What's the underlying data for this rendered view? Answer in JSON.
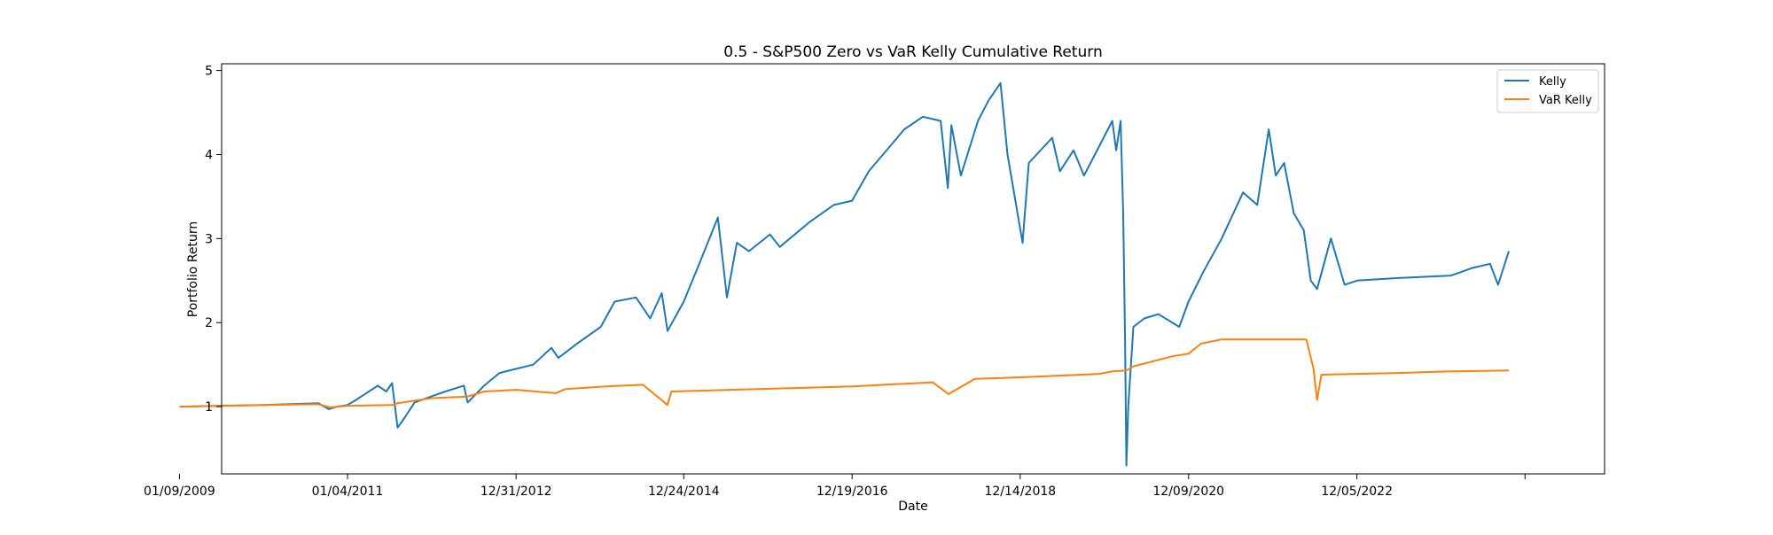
{
  "chart_data": {
    "type": "line",
    "title": "0.5 - S&P500 Zero vs VaR Kelly Cumulative Return",
    "xlabel": "Date",
    "ylabel": "Portfolio Return",
    "xlim": [
      "2009-07-10",
      "2025-11-07"
    ],
    "ylim": [
      0.2,
      5.08
    ],
    "x_ticks": [
      {
        "date": "2009-01-09",
        "label": "01/09/2009"
      },
      {
        "date": "2011-01-04",
        "label": "01/04/2011"
      },
      {
        "date": "2012-12-31",
        "label": "12/31/2012"
      },
      {
        "date": "2014-12-24",
        "label": "12/24/2014"
      },
      {
        "date": "2016-12-19",
        "label": "12/19/2016"
      },
      {
        "date": "2018-12-14",
        "label": "12/14/2018"
      },
      {
        "date": "2020-12-09",
        "label": "12/09/2020"
      },
      {
        "date": "2022-12-05",
        "label": "12/05/2022"
      },
      {
        "date": "2024-11-29",
        "label": ""
      }
    ],
    "y_ticks": [
      1,
      2,
      3,
      4,
      5
    ],
    "grid": false,
    "legend": {
      "position": "top-right",
      "entries": [
        "Kelly",
        "VaR Kelly"
      ]
    },
    "series": [
      {
        "name": "Kelly",
        "color": "#1f77b4",
        "points": [
          [
            "2009-01-09",
            1.0
          ],
          [
            "2010-01-05",
            1.02
          ],
          [
            "2010-09-01",
            1.04
          ],
          [
            "2010-10-15",
            0.97
          ],
          [
            "2010-11-20",
            1.0
          ],
          [
            "2011-01-04",
            1.02
          ],
          [
            "2011-02-10",
            1.08
          ],
          [
            "2011-03-20",
            1.15
          ],
          [
            "2011-05-15",
            1.25
          ],
          [
            "2011-06-20",
            1.18
          ],
          [
            "2011-07-15",
            1.28
          ],
          [
            "2011-08-08",
            0.75
          ],
          [
            "2011-09-10",
            0.88
          ],
          [
            "2011-10-20",
            1.05
          ],
          [
            "2011-12-30",
            1.12
          ],
          [
            "2012-03-01",
            1.18
          ],
          [
            "2012-05-20",
            1.25
          ],
          [
            "2012-06-05",
            1.05
          ],
          [
            "2012-08-15",
            1.25
          ],
          [
            "2012-10-20",
            1.4
          ],
          [
            "2012-12-31",
            1.45
          ],
          [
            "2013-03-15",
            1.5
          ],
          [
            "2013-06-01",
            1.7
          ],
          [
            "2013-07-01",
            1.58
          ],
          [
            "2013-09-20",
            1.75
          ],
          [
            "2013-12-31",
            1.95
          ],
          [
            "2014-03-01",
            2.25
          ],
          [
            "2014-06-01",
            2.3
          ],
          [
            "2014-08-01",
            2.05
          ],
          [
            "2014-09-20",
            2.35
          ],
          [
            "2014-10-15",
            1.9
          ],
          [
            "2014-12-24",
            2.25
          ],
          [
            "2015-03-01",
            2.7
          ],
          [
            "2015-05-20",
            3.25
          ],
          [
            "2015-06-28",
            2.3
          ],
          [
            "2015-08-10",
            2.95
          ],
          [
            "2015-10-01",
            2.85
          ],
          [
            "2015-12-31",
            3.05
          ],
          [
            "2016-02-11",
            2.9
          ],
          [
            "2016-06-20",
            3.2
          ],
          [
            "2016-10-01",
            3.4
          ],
          [
            "2016-12-19",
            3.45
          ],
          [
            "2017-03-01",
            3.8
          ],
          [
            "2017-06-01",
            4.1
          ],
          [
            "2017-08-01",
            4.3
          ],
          [
            "2017-10-20",
            4.45
          ],
          [
            "2018-01-05",
            4.4
          ],
          [
            "2018-02-05",
            3.6
          ],
          [
            "2018-02-20",
            4.35
          ],
          [
            "2018-04-02",
            3.75
          ],
          [
            "2018-06-15",
            4.4
          ],
          [
            "2018-08-01",
            4.65
          ],
          [
            "2018-09-20",
            4.85
          ],
          [
            "2018-10-20",
            4.0
          ],
          [
            "2018-12-24",
            2.95
          ],
          [
            "2019-01-20",
            3.9
          ],
          [
            "2019-05-01",
            4.2
          ],
          [
            "2019-06-03",
            3.8
          ],
          [
            "2019-08-01",
            4.05
          ],
          [
            "2019-09-15",
            3.75
          ],
          [
            "2019-11-20",
            4.1
          ],
          [
            "2020-01-15",
            4.4
          ],
          [
            "2020-02-01",
            4.05
          ],
          [
            "2020-02-20",
            4.4
          ],
          [
            "2020-03-02",
            3.3
          ],
          [
            "2020-03-10",
            1.8
          ],
          [
            "2020-03-16",
            0.3
          ],
          [
            "2020-03-24",
            1.0
          ],
          [
            "2020-04-15",
            1.95
          ],
          [
            "2020-06-01",
            2.05
          ],
          [
            "2020-08-01",
            2.1
          ],
          [
            "2020-10-30",
            1.95
          ],
          [
            "2020-12-09",
            2.25
          ],
          [
            "2021-02-10",
            2.6
          ],
          [
            "2021-05-01",
            3.0
          ],
          [
            "2021-08-01",
            3.55
          ],
          [
            "2021-10-01",
            3.4
          ],
          [
            "2021-11-20",
            4.3
          ],
          [
            "2021-12-20",
            3.75
          ],
          [
            "2022-01-25",
            3.9
          ],
          [
            "2022-03-08",
            3.3
          ],
          [
            "2022-04-20",
            3.1
          ],
          [
            "2022-05-20",
            2.5
          ],
          [
            "2022-06-16",
            2.4
          ],
          [
            "2022-08-15",
            3.0
          ],
          [
            "2022-10-13",
            2.45
          ],
          [
            "2022-12-05",
            2.5
          ],
          [
            "2023-06-01",
            2.53
          ],
          [
            "2024-01-15",
            2.56
          ],
          [
            "2024-04-15",
            2.65
          ],
          [
            "2024-07-01",
            2.7
          ],
          [
            "2024-08-05",
            2.45
          ],
          [
            "2024-09-20",
            2.85
          ]
        ]
      },
      {
        "name": "VaR Kelly",
        "color": "#ff7f0e",
        "points": [
          [
            "2009-01-09",
            1.0
          ],
          [
            "2010-09-01",
            1.03
          ],
          [
            "2010-10-20",
            0.99
          ],
          [
            "2011-01-04",
            1.01
          ],
          [
            "2011-07-15",
            1.02
          ],
          [
            "2011-08-08",
            1.04
          ],
          [
            "2011-12-30",
            1.1
          ],
          [
            "2012-06-05",
            1.12
          ],
          [
            "2012-08-15",
            1.18
          ],
          [
            "2012-12-31",
            1.2
          ],
          [
            "2013-06-20",
            1.16
          ],
          [
            "2013-08-01",
            1.21
          ],
          [
            "2014-01-24",
            1.24
          ],
          [
            "2014-07-01",
            1.26
          ],
          [
            "2014-10-15",
            1.02
          ],
          [
            "2014-11-01",
            1.18
          ],
          [
            "2016-12-19",
            1.24
          ],
          [
            "2017-12-01",
            1.29
          ],
          [
            "2018-02-08",
            1.15
          ],
          [
            "2018-06-01",
            1.33
          ],
          [
            "2018-12-24",
            1.35
          ],
          [
            "2019-11-20",
            1.39
          ],
          [
            "2020-01-15",
            1.42
          ],
          [
            "2020-03-16",
            1.43
          ],
          [
            "2020-04-15",
            1.48
          ],
          [
            "2020-10-01",
            1.6
          ],
          [
            "2020-12-09",
            1.63
          ],
          [
            "2021-02-01",
            1.75
          ],
          [
            "2021-05-01",
            1.8
          ],
          [
            "2022-01-03",
            1.8
          ],
          [
            "2022-05-01",
            1.8
          ],
          [
            "2022-06-01",
            1.45
          ],
          [
            "2022-06-16",
            1.08
          ],
          [
            "2022-07-05",
            1.38
          ],
          [
            "2023-06-01",
            1.4
          ],
          [
            "2024-01-15",
            1.42
          ],
          [
            "2024-09-20",
            1.43
          ]
        ]
      }
    ]
  }
}
